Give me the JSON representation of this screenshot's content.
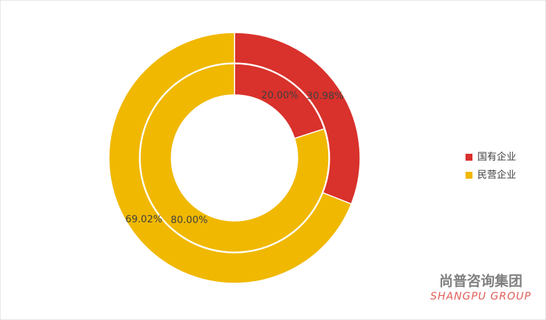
{
  "chart_data": {
    "type": "double-donut",
    "categories": [
      "国有企业",
      "民营企业"
    ],
    "colors": [
      "#d9312b",
      "#f0b800"
    ],
    "series": [
      {
        "values": [
          20,
          80
        ],
        "value_labels": [
          "20.00%",
          "80.00%"
        ]
      },
      {
        "values": [
          30.98,
          69.02
        ],
        "value_labels": [
          "30.98%",
          "69.02%"
        ]
      }
    ],
    "legend": "right",
    "watermark_title": "尚普咨询集团",
    "watermark_subtitle": "SHANGPU GROUP"
  }
}
